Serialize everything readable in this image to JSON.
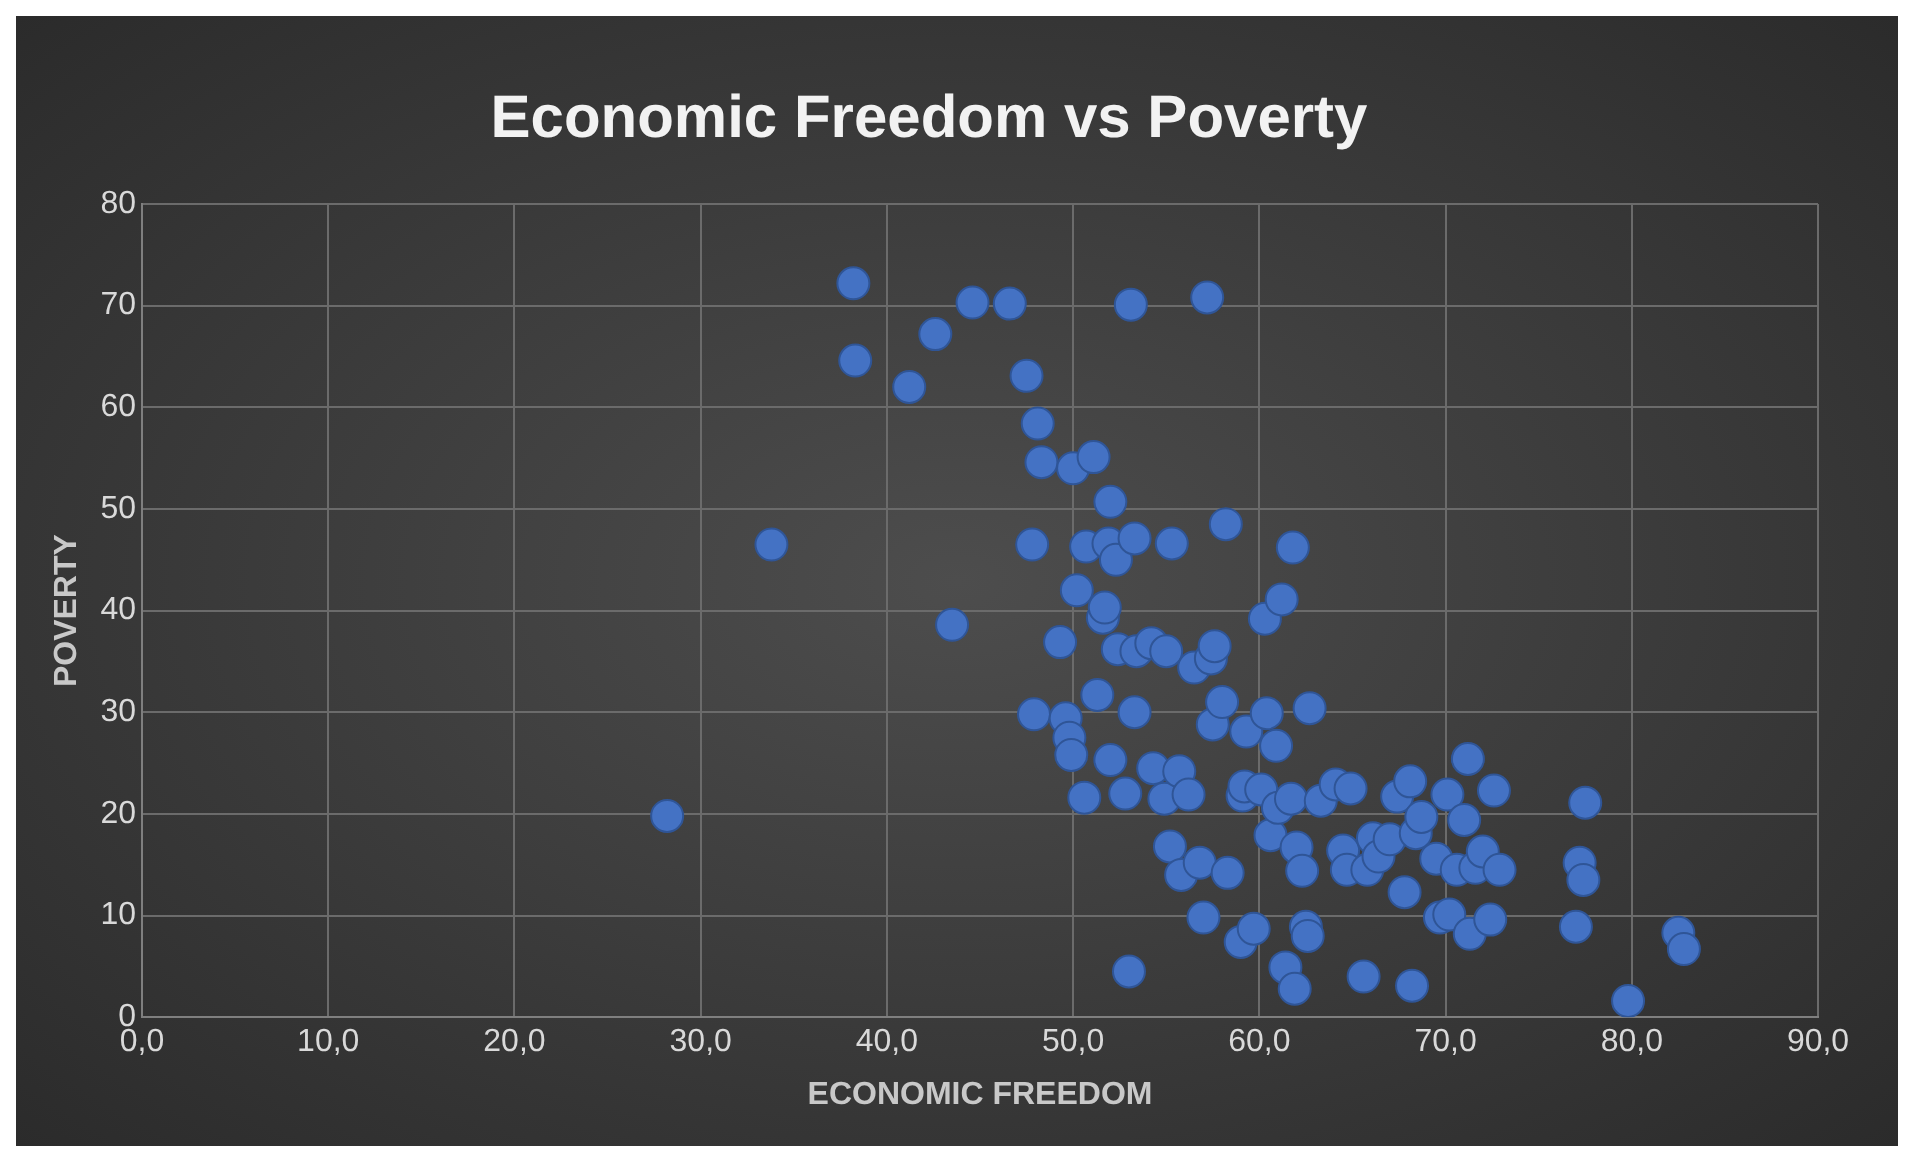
{
  "chart_data": {
    "type": "scatter",
    "title": "Economic Freedom vs Poverty",
    "xlabel": "ECONOMIC FREEDOM",
    "ylabel": "POVERTY",
    "color": "#4472c4",
    "marker": "circle",
    "grid": true,
    "xlim": [
      0,
      90
    ],
    "ylim": [
      0,
      80
    ],
    "xticks": [
      {
        "value": 0,
        "label": "0,0"
      },
      {
        "value": 10,
        "label": "10,0"
      },
      {
        "value": 20,
        "label": "20,0"
      },
      {
        "value": 30,
        "label": "30,0"
      },
      {
        "value": 40,
        "label": "40,0"
      },
      {
        "value": 50,
        "label": "50,0"
      },
      {
        "value": 60,
        "label": "60,0"
      },
      {
        "value": 70,
        "label": "70,0"
      },
      {
        "value": 80,
        "label": "80,0"
      },
      {
        "value": 90,
        "label": "90,0"
      }
    ],
    "yticks": [
      0,
      10,
      20,
      30,
      40,
      50,
      60,
      70,
      80
    ],
    "x": [
      28.2,
      33.8,
      38.2,
      38.3,
      41.2,
      42.6,
      43.5,
      44.6,
      46.6,
      47.5,
      48.1,
      48.3,
      47.8,
      47.9,
      49.3,
      49.6,
      49.8,
      49.9,
      50,
      50.2,
      50.6,
      50.7,
      51.1,
      51.3,
      51.6,
      51.7,
      51.9,
      52,
      52,
      52.3,
      52.4,
      52.8,
      53,
      53.1,
      53.3,
      53.3,
      53.4,
      54.2,
      54.3,
      54.9,
      55,
      55.2,
      55.3,
      55.7,
      55.8,
      56.2,
      56.5,
      56.8,
      57,
      57.2,
      57.4,
      57.6,
      57.5,
      58,
      58.2,
      58.3,
      59,
      59.1,
      59.2,
      59.3,
      59.7,
      60.1,
      60.3,
      60.4,
      60.6,
      60.9,
      61,
      61.2,
      61.4,
      61.7,
      61.8,
      61.9,
      62,
      62.3,
      62.5,
      62.6,
      62.7,
      63.3,
      64.1,
      64.5,
      64.7,
      64.9,
      65.6,
      65.8,
      66.1,
      66.4,
      67,
      67.4,
      67.8,
      68.1,
      68.2,
      68.4,
      68.7,
      69.5,
      69.7,
      70.1,
      70.2,
      70.6,
      71,
      71.2,
      71.3,
      71.6,
      72,
      72.4,
      72.6,
      72.9,
      77,
      77.2,
      77.4,
      77.5,
      79.8,
      82.5,
      82.8
    ],
    "values": [
      19.8,
      46.5,
      72.2,
      64.6,
      62,
      67.2,
      38.6,
      70.3,
      70.2,
      63.1,
      58.4,
      54.6,
      46.5,
      29.8,
      36.9,
      29.4,
      27.5,
      25.8,
      54,
      42,
      21.6,
      46.3,
      55.1,
      31.7,
      39.3,
      40.3,
      46.6,
      50.7,
      25.3,
      45,
      36.2,
      22,
      4.5,
      70.1,
      47.1,
      30,
      36,
      36.8,
      24.5,
      21.5,
      36,
      16.8,
      46.6,
      24.2,
      14,
      21.9,
      34.4,
      15.2,
      9.8,
      70.8,
      35.3,
      36.5,
      28.8,
      31,
      48.5,
      14.2,
      7.4,
      21.8,
      22.7,
      28.1,
      8.7,
      22.4,
      39.2,
      29.9,
      17.9,
      26.7,
      20.6,
      41.1,
      4.9,
      21.5,
      46.2,
      2.8,
      16.7,
      14.4,
      8.9,
      8,
      30.4,
      21.3,
      22.9,
      16.4,
      14.5,
      22.5,
      4,
      14.5,
      17.6,
      15.8,
      17.5,
      21.7,
      12.3,
      23.2,
      3.1,
      18.1,
      19.7,
      15.6,
      9.8,
      21.9,
      10.1,
      14.5,
      19.4,
      25.4,
      8.2,
      14.7,
      16.3,
      9.6,
      22.3,
      14.5,
      8.9,
      15.2,
      13.5,
      21.1,
      1.6,
      8.3,
      6.7
    ]
  }
}
